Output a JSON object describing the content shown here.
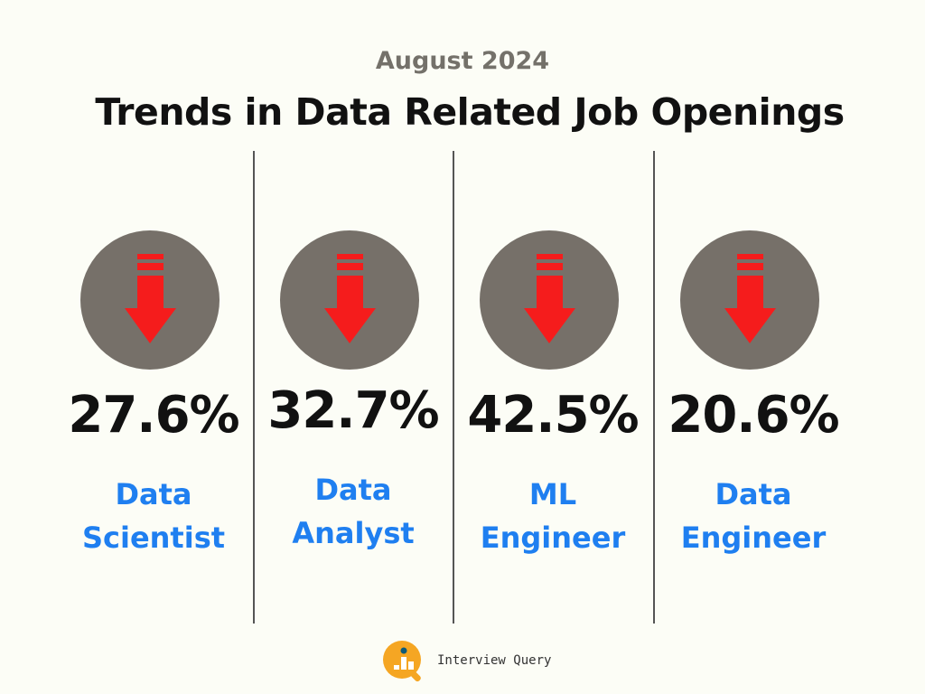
{
  "header": {
    "subtitle": "August 2024",
    "title": "Trends in Data Related Job Openings"
  },
  "colors": {
    "circle": "#767069",
    "arrow": "#f51c1c",
    "label": "#1f7ff0"
  },
  "cards": [
    {
      "icon": "arrow-down-icon",
      "percent": "27.6%",
      "label_line1": "Data",
      "label_line2": "Scientist"
    },
    {
      "icon": "arrow-down-icon",
      "percent": "32.7%",
      "label_line1": "Data",
      "label_line2": "Analyst"
    },
    {
      "icon": "arrow-down-icon",
      "percent": "42.5%",
      "label_line1": "ML",
      "label_line2": "Engineer"
    },
    {
      "icon": "arrow-down-icon",
      "percent": "20.6%",
      "label_line1": "Data",
      "label_line2": "Engineer"
    }
  ],
  "footer": {
    "brand": "Interview Query"
  }
}
